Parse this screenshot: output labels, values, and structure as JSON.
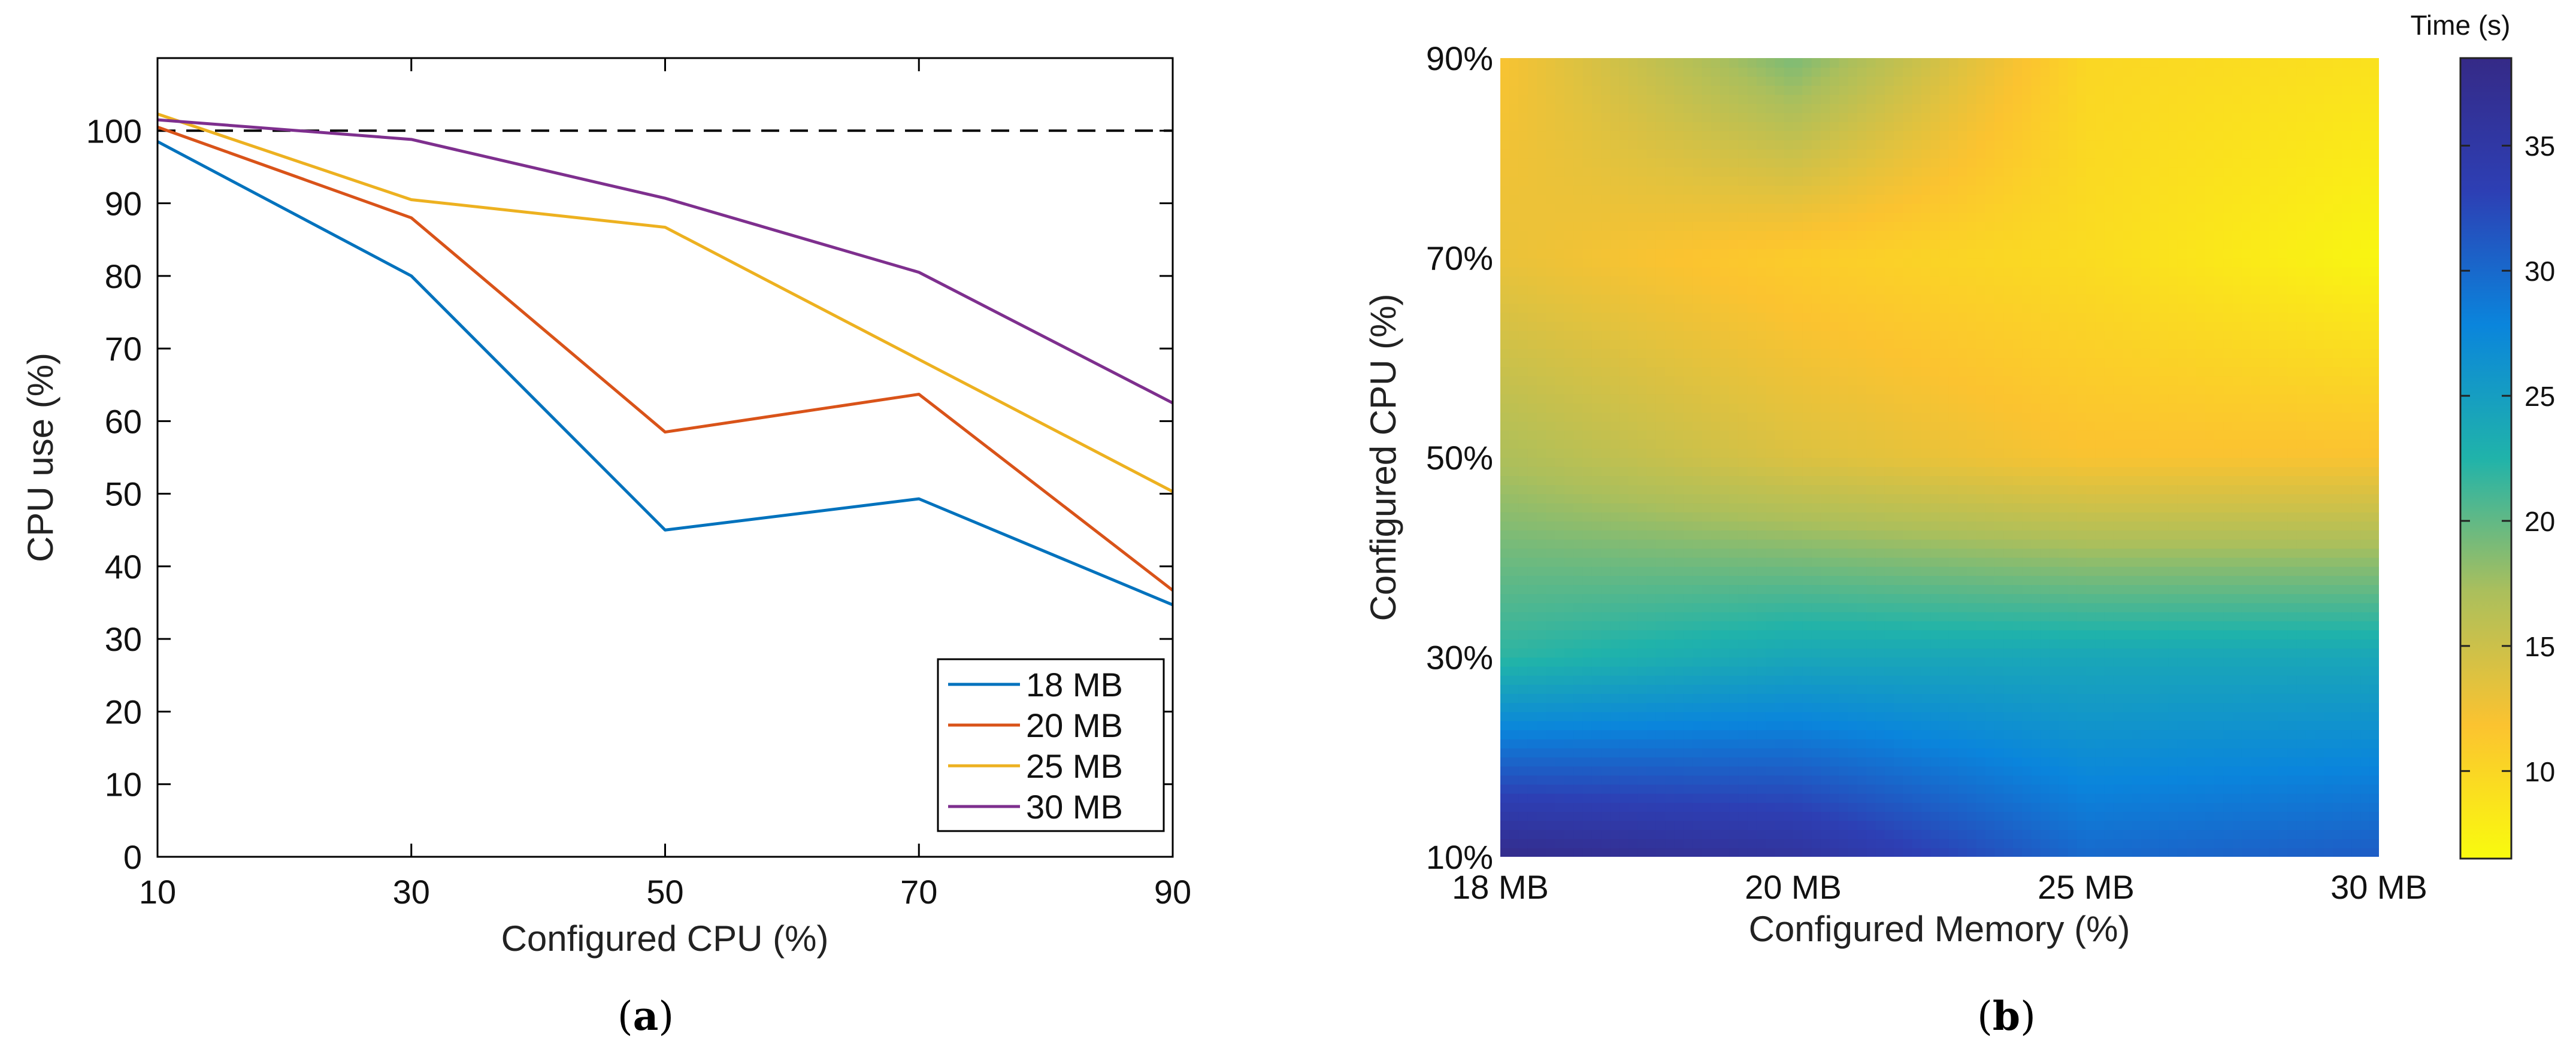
{
  "chart_data": [
    {
      "type": "line",
      "panel_label": "a",
      "xlabel": "Configured CPU (%)",
      "ylabel": "CPU use (%)",
      "x": [
        10,
        30,
        50,
        70,
        90
      ],
      "xlim": [
        10,
        90
      ],
      "ylim": [
        0,
        110
      ],
      "xticks": [
        "10",
        "30",
        "50",
        "70",
        "90"
      ],
      "yticks": [
        "0",
        "10",
        "20",
        "30",
        "40",
        "50",
        "60",
        "70",
        "80",
        "90",
        "100"
      ],
      "reference_line": {
        "y": 100,
        "style": "dashed",
        "color": "#000000"
      },
      "legend_position": "bottom-right",
      "series": [
        {
          "name": "18 MB",
          "color": "#0072bd",
          "values": [
            98.5,
            80,
            45,
            49.3,
            34.7
          ]
        },
        {
          "name": "20 MB",
          "color": "#d95319",
          "values": [
            100.5,
            88,
            58.5,
            63.7,
            36.7
          ]
        },
        {
          "name": "25 MB",
          "color": "#edb120",
          "values": [
            102.3,
            90.5,
            86.7,
            68.5,
            50.3
          ]
        },
        {
          "name": "30 MB",
          "color": "#7e2f8e",
          "values": [
            101.5,
            98.8,
            90.7,
            80.5,
            62.5
          ]
        }
      ]
    },
    {
      "type": "heatmap",
      "panel_label": "b",
      "xlabel": "Configured Memory (%)",
      "ylabel": "Configured CPU (%)",
      "x_categories": [
        "18 MB",
        "20 MB",
        "25 MB",
        "30 MB"
      ],
      "y_categories": [
        "10%",
        "30%",
        "50%",
        "70%",
        "90%"
      ],
      "values": [
        [
          38,
          36,
          30,
          31
        ],
        [
          22,
          24,
          24,
          24
        ],
        [
          17,
          14,
          12,
          12
        ],
        [
          13,
          11,
          9.5,
          7
        ],
        [
          12,
          19,
          10,
          9
        ]
      ],
      "colorbar": {
        "title": "Time (s)",
        "range": [
          6.5,
          38.5
        ],
        "ticks": [
          "10",
          "15",
          "20",
          "25",
          "30",
          "35"
        ],
        "stops": [
          "#f9fb0e",
          "#fbc330",
          "#abbf5c",
          "#20b3aa",
          "#0a85dc",
          "#2d3fb4",
          "#352a87"
        ]
      }
    }
  ]
}
